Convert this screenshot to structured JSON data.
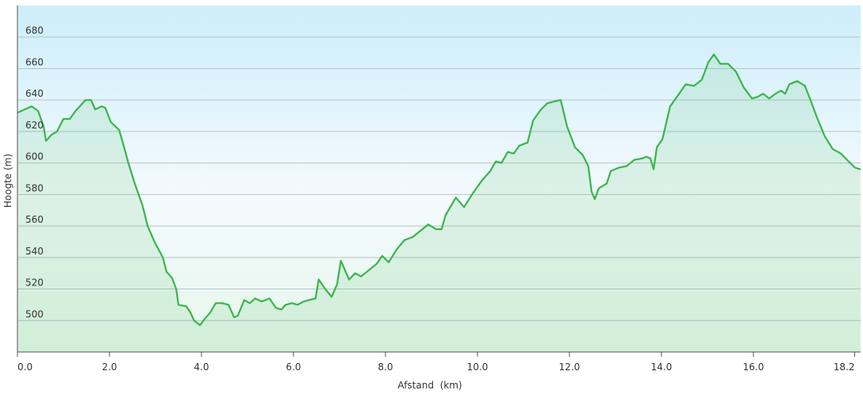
{
  "chart_data": {
    "type": "area",
    "x_label": "Afstand  (km)",
    "y_label": "Hoogte (m)",
    "x": [
      0,
      0.31,
      0.45,
      0.57,
      0.62,
      0.74,
      0.86,
      1.0,
      1.14,
      1.26,
      1.48,
      1.6,
      1.69,
      1.83,
      1.91,
      2.03,
      2.21,
      2.29,
      2.41,
      2.55,
      2.72,
      2.83,
      2.98,
      3.16,
      3.24,
      3.36,
      3.45,
      3.5,
      3.67,
      3.76,
      3.84,
      3.97,
      4.07,
      4.19,
      4.31,
      4.45,
      4.59,
      4.71,
      4.79,
      4.93,
      5.05,
      5.17,
      5.31,
      5.48,
      5.62,
      5.74,
      5.83,
      5.97,
      6.09,
      6.22,
      6.34,
      6.48,
      6.55,
      6.69,
      6.83,
      6.95,
      7.03,
      7.21,
      7.34,
      7.47,
      7.64,
      7.81,
      7.93,
      8.07,
      8.24,
      8.41,
      8.59,
      8.76,
      8.93,
      9.1,
      9.22,
      9.31,
      9.53,
      9.71,
      9.88,
      10.1,
      10.28,
      10.4,
      10.52,
      10.66,
      10.79,
      10.91,
      11.09,
      11.21,
      11.38,
      11.52,
      11.66,
      11.81,
      11.95,
      12.12,
      12.29,
      12.41,
      12.48,
      12.55,
      12.64,
      12.81,
      12.9,
      13.07,
      13.24,
      13.41,
      13.59,
      13.67,
      13.76,
      13.83,
      13.9,
      14.02,
      14.19,
      14.36,
      14.53,
      14.71,
      14.88,
      15.02,
      15.14,
      15.28,
      15.45,
      15.62,
      15.79,
      15.97,
      16.09,
      16.21,
      16.34,
      16.48,
      16.6,
      16.69,
      16.78,
      16.95,
      17.12,
      17.24,
      17.38,
      17.55,
      17.72,
      17.9,
      18.07,
      18.21,
      18.33
    ],
    "values": [
      632,
      636,
      633,
      623,
      614,
      618,
      620,
      628,
      628,
      633,
      640,
      640,
      634,
      636,
      635,
      626,
      621,
      613,
      600,
      587,
      573,
      560,
      550,
      540,
      531,
      527,
      520,
      510,
      509,
      505,
      500,
      497,
      501,
      505,
      511,
      511,
      510,
      502,
      503,
      513,
      511,
      514,
      512,
      514,
      508,
      507,
      510,
      511,
      510,
      512,
      513,
      514,
      526,
      520,
      515,
      523,
      538,
      526,
      530,
      528,
      532,
      536,
      541,
      537,
      545,
      551,
      553,
      557,
      561,
      558,
      558,
      567,
      578,
      572,
      580,
      589,
      595,
      601,
      600,
      607,
      606,
      611,
      613,
      627,
      634,
      638,
      639,
      640,
      623,
      610,
      605,
      598,
      582,
      577,
      584,
      587,
      595,
      597,
      598,
      602,
      603,
      604,
      603,
      596,
      610,
      615,
      636,
      643,
      650,
      649,
      653,
      664,
      669,
      663,
      663,
      658,
      648,
      641,
      642,
      644,
      641,
      644,
      646,
      644,
      650,
      652,
      649,
      640,
      629,
      617,
      609,
      606,
      601,
      597,
      596
    ],
    "color": "#3ab54a",
    "xlim": [
      0,
      18.33
    ],
    "xticks": [
      {
        "value": 0,
        "label": "0.0"
      },
      {
        "value": 2,
        "label": "2.0"
      },
      {
        "value": 4,
        "label": "4.0"
      },
      {
        "value": 6,
        "label": "6.0"
      },
      {
        "value": 8,
        "label": "8.0"
      },
      {
        "value": 10,
        "label": "10.0"
      },
      {
        "value": 12,
        "label": "12.0"
      },
      {
        "value": 14,
        "label": "14.0"
      },
      {
        "value": 16,
        "label": "16.0"
      },
      18.2
    ],
    "ylim": [
      480,
      700
    ],
    "yticks": [
      500,
      520,
      540,
      560,
      580,
      600,
      620,
      640,
      660,
      680
    ],
    "grid": true
  }
}
